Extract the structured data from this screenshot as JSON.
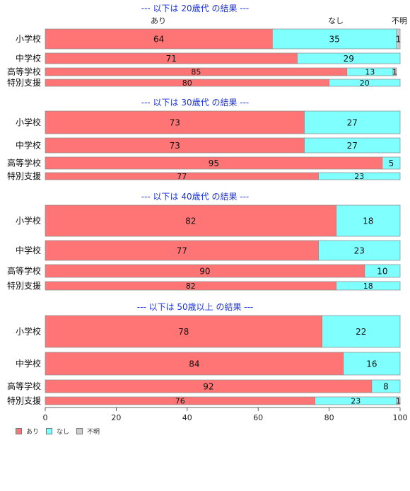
{
  "chart_data": {
    "type": "bar",
    "orientation": "horizontal",
    "stacked": "percent",
    "xlim": [
      0,
      100
    ],
    "xticks": [
      "0",
      "20",
      "40",
      "60",
      "80",
      "100"
    ],
    "series_names": [
      "あり",
      "なし",
      "不明"
    ],
    "series_colors": [
      "#ff7575",
      "#80ffff",
      "#cccccc"
    ],
    "top_labels": [
      "あり",
      "なし",
      "不明"
    ],
    "groups": [
      {
        "title": "--- 以下は 20歳代 の結果 ---",
        "rows": [
          {
            "label": "小学校",
            "values": [
              64,
              35,
              1
            ]
          },
          {
            "label": "中学校",
            "values": [
              71,
              29,
              0
            ]
          },
          {
            "label": "高等学校",
            "values": [
              85,
              13,
              1
            ]
          },
          {
            "label": "特別支援",
            "values": [
              80,
              20,
              0
            ]
          }
        ]
      },
      {
        "title": "--- 以下は 30歳代 の結果 ---",
        "rows": [
          {
            "label": "小学校",
            "values": [
              73,
              27,
              0
            ]
          },
          {
            "label": "中学校",
            "values": [
              73,
              27,
              0
            ]
          },
          {
            "label": "高等学校",
            "values": [
              95,
              5,
              0
            ]
          },
          {
            "label": "特別支援",
            "values": [
              77,
              23,
              0
            ]
          }
        ]
      },
      {
        "title": "--- 以下は 40歳代 の結果 ---",
        "rows": [
          {
            "label": "小学校",
            "values": [
              82,
              18,
              0
            ]
          },
          {
            "label": "中学校",
            "values": [
              77,
              23,
              0
            ]
          },
          {
            "label": "高等学校",
            "values": [
              90,
              10,
              0
            ]
          },
          {
            "label": "特別支援",
            "values": [
              82,
              18,
              0
            ]
          }
        ]
      },
      {
        "title": "--- 以下は 50歳以上 の結果 ---",
        "rows": [
          {
            "label": "小学校",
            "values": [
              78,
              22,
              0
            ]
          },
          {
            "label": "中学校",
            "values": [
              84,
              16,
              0
            ]
          },
          {
            "label": "高等学校",
            "values": [
              92,
              8,
              0
            ]
          },
          {
            "label": "特別支援",
            "values": [
              76,
              23,
              1
            ]
          }
        ]
      }
    ],
    "legend": [
      {
        "label": "あり",
        "color": "#ff7575"
      },
      {
        "label": "なし",
        "color": "#80ffff"
      },
      {
        "label": "不明",
        "color": "#cccccc"
      }
    ],
    "legend_position": "bottom-left"
  }
}
